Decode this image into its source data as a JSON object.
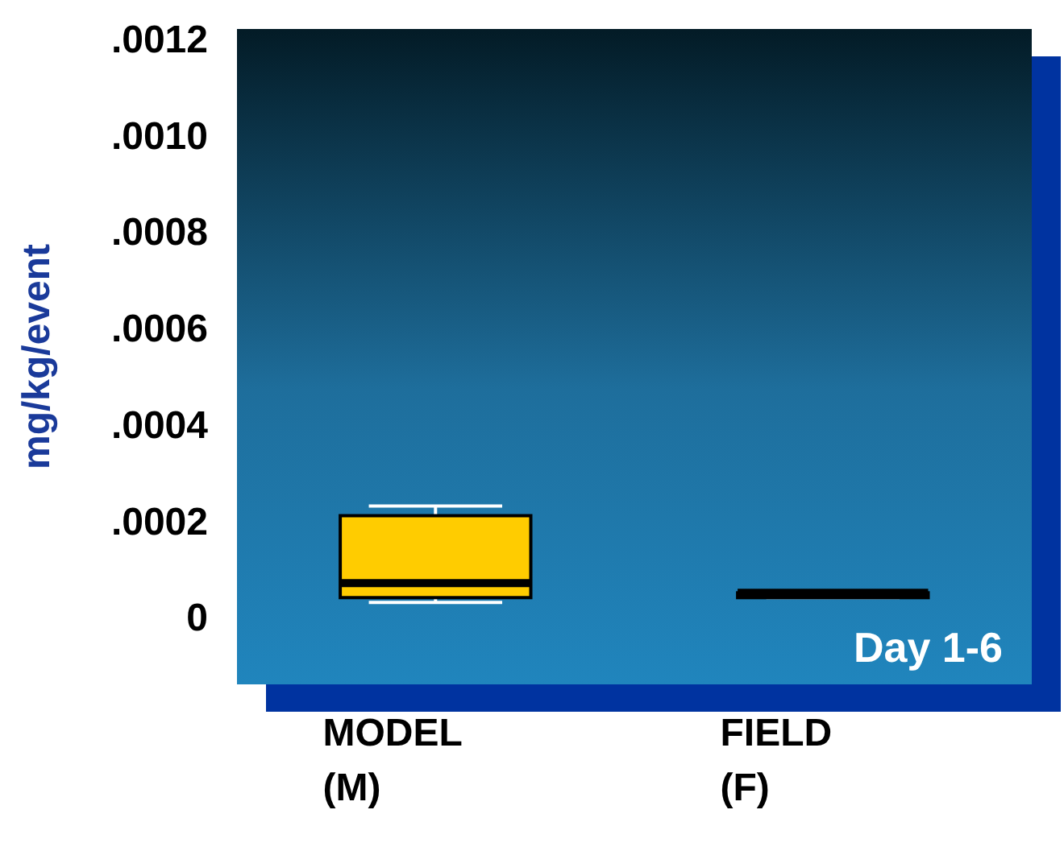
{
  "chart_data": {
    "type": "box",
    "ylabel": "mg/kg/event",
    "categories": [
      "MODEL (M)",
      "FIELD (F)"
    ],
    "series": [
      {
        "color": "#ffcc00",
        "boxes": [
          {
            "low": 3e-05,
            "q1": 4e-05,
            "median": 7e-05,
            "q3": 0.00021,
            "high": 0.00023
          },
          {
            "low": 4e-05,
            "q1": 4e-05,
            "median": 5e-05,
            "q3": 5e-05,
            "high": 5e-05
          }
        ]
      }
    ],
    "ylim": [
      -0.00014,
      0.00122
    ],
    "yticks": [
      0,
      {
        "value": 0.0002,
        "label": ".0002"
      },
      {
        "value": 0.0004,
        "label": ".0004"
      },
      {
        "value": 0.0006,
        "label": ".0006"
      },
      {
        "value": 0.0008,
        "label": ".0008"
      },
      {
        "value": 0.001,
        "label": ".0010"
      },
      {
        "value": 0.0012,
        "label": ".0012"
      }
    ],
    "annotations": [
      "Day 1-6"
    ],
    "grid": false
  }
}
